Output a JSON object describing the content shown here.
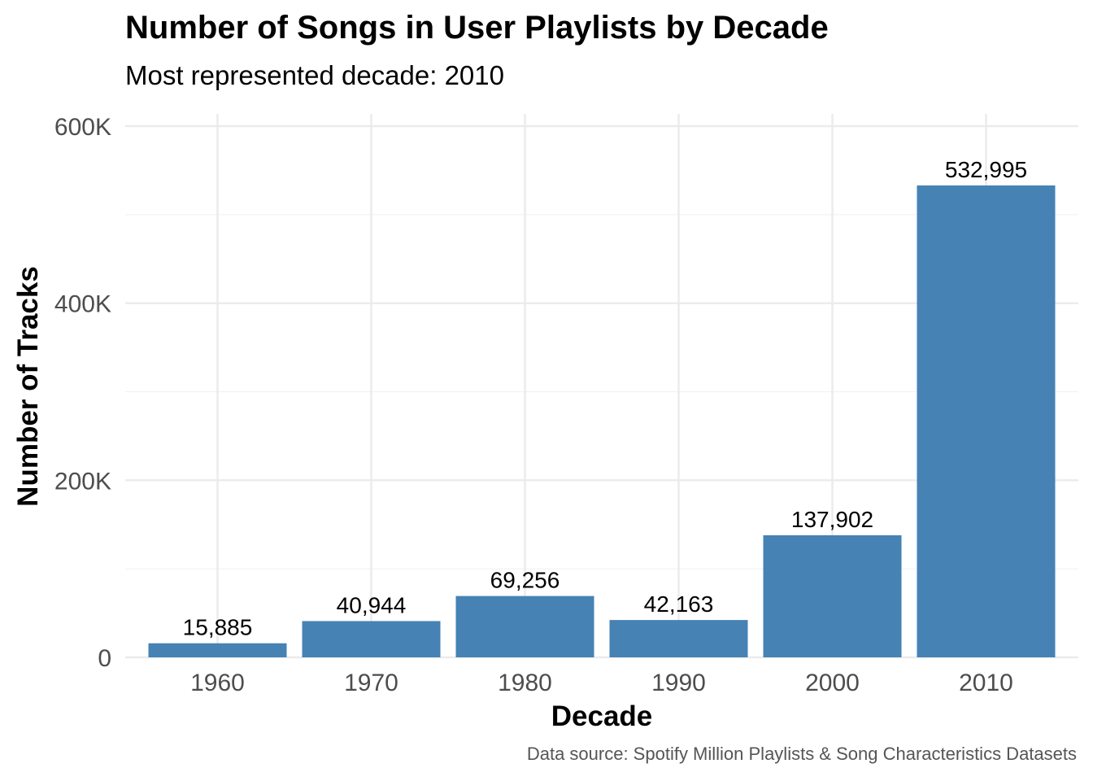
{
  "chart_data": {
    "type": "bar",
    "title": "Number of Songs in User Playlists by Decade",
    "subtitle": "Most represented decade: 2010",
    "caption": "Data source: Spotify Million Playlists & Song Characteristics Datasets",
    "xlabel": "Decade",
    "ylabel": "Number of Tracks",
    "categories": [
      "1960",
      "1970",
      "1980",
      "1990",
      "2000",
      "2010"
    ],
    "values": [
      15885,
      40944,
      69256,
      42163,
      137902,
      532995
    ],
    "value_labels": [
      "15,885",
      "40,944",
      "69,256",
      "42,163",
      "137,902",
      "532,995"
    ],
    "ylim": [
      0,
      600000
    ],
    "yticks": [
      0,
      200000,
      400000,
      600000
    ],
    "ytick_labels": [
      "0",
      "200K",
      "400K",
      "600K"
    ],
    "grid": true,
    "legend": "none",
    "colors": {
      "bar": "#4682B4",
      "grid_major": "#EBEBEB",
      "grid_minor": "#F2F2F2"
    }
  }
}
